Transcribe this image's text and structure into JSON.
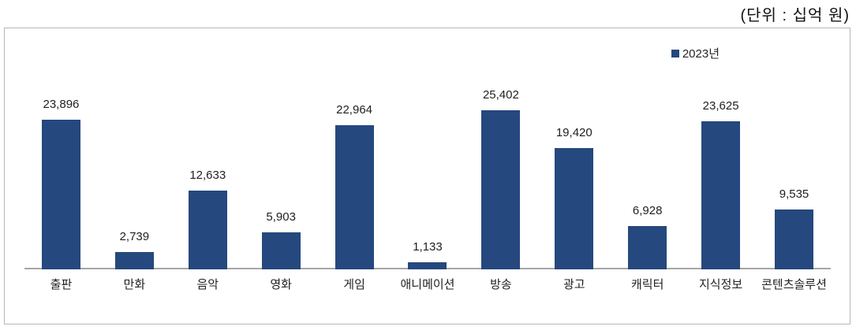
{
  "unit_label": "(단위 : 십억 원)",
  "legend": {
    "label": "2023년",
    "marker_color": "#25487E"
  },
  "colors": {
    "bar": "#25487E",
    "axis_line": "#a6a6a6",
    "frame_border": "#b7b7b7",
    "text": "#1f1f1f"
  },
  "chart_data": {
    "type": "bar",
    "title": "",
    "subtitle": "",
    "unit": "십억 원",
    "xlabel": "",
    "ylabel": "",
    "grid": false,
    "y_axis_visible": false,
    "legend_position": "top-right",
    "legend_entries": [
      "2023년"
    ],
    "categories": [
      "출판",
      "만화",
      "음악",
      "영화",
      "게임",
      "애니메이션",
      "방송",
      "광고",
      "캐릭터",
      "지식정보",
      "콘텐츠솔루션"
    ],
    "series": [
      {
        "name": "2023년",
        "values": [
          23896,
          2739,
          12633,
          5903,
          22964,
          1133,
          25402,
          19420,
          6928,
          23625,
          9535
        ]
      }
    ],
    "value_labels": [
      "23,896",
      "2,739",
      "12,633",
      "5,903",
      "22,964",
      "1,133",
      "25,402",
      "19,420",
      "6,928",
      "23,625",
      "9,535"
    ],
    "ylim": [
      0,
      25402
    ]
  }
}
